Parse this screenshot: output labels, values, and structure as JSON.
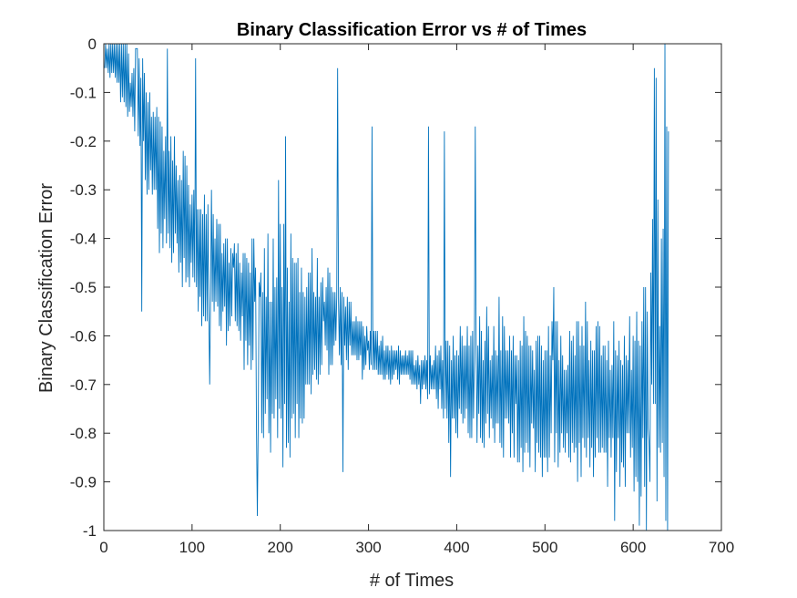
{
  "chart_data": {
    "type": "line",
    "title": "Binary Classification Error vs # of Times",
    "xlabel": "# of Times",
    "ylabel": "Binary Classification Error",
    "xlim": [
      0,
      700
    ],
    "ylim": [
      -1,
      0
    ],
    "xticks": [
      0,
      100,
      200,
      300,
      400,
      500,
      600,
      700
    ],
    "xtick_labels": [
      "0",
      "100",
      "200",
      "300",
      "400",
      "500",
      "600",
      "700"
    ],
    "yticks": [
      0,
      -0.1,
      -0.2,
      -0.3,
      -0.4,
      -0.5,
      -0.6,
      -0.7,
      -0.8,
      -0.9,
      -1
    ],
    "ytick_labels": [
      "0",
      "-0.1",
      "-0.2",
      "-0.3",
      "-0.4",
      "-0.5",
      "-0.6",
      "-0.7",
      "-0.8",
      "-0.9",
      "-1"
    ],
    "grid": false,
    "line_color": "#0072BD",
    "x_range": [
      1,
      640
    ],
    "envelope": {
      "x": [
        0,
        20,
        40,
        60,
        80,
        100,
        120,
        140,
        160,
        170,
        180,
        200,
        220,
        240,
        260,
        280,
        300,
        320,
        340,
        360,
        380,
        400,
        420,
        440,
        460,
        480,
        500,
        520,
        540,
        560,
        580,
        600,
        610,
        620,
        630,
        640
      ],
      "center": [
        -0.02,
        -0.05,
        -0.12,
        -0.25,
        -0.33,
        -0.4,
        -0.45,
        -0.5,
        -0.53,
        -0.58,
        -0.62,
        -0.64,
        -0.6,
        -0.58,
        -0.57,
        -0.6,
        -0.63,
        -0.65,
        -0.66,
        -0.68,
        -0.68,
        -0.7,
        -0.7,
        -0.7,
        -0.71,
        -0.72,
        -0.73,
        -0.73,
        -0.73,
        -0.74,
        -0.74,
        -0.74,
        -0.7,
        -0.63,
        -0.58,
        -0.56
      ],
      "amplitude": [
        0.03,
        0.08,
        0.12,
        0.15,
        0.15,
        0.14,
        0.13,
        0.12,
        0.1,
        0.18,
        0.25,
        0.28,
        0.22,
        0.16,
        0.1,
        0.07,
        0.05,
        0.05,
        0.04,
        0.04,
        0.08,
        0.12,
        0.14,
        0.15,
        0.15,
        0.16,
        0.17,
        0.17,
        0.17,
        0.18,
        0.18,
        0.18,
        0.25,
        0.33,
        0.4,
        0.43
      ]
    },
    "spikes": [
      {
        "x": 37,
        "y": -0.01
      },
      {
        "x": 43,
        "y": -0.55
      },
      {
        "x": 72,
        "y": -0.01
      },
      {
        "x": 104,
        "y": -0.03
      },
      {
        "x": 120,
        "y": -0.7
      },
      {
        "x": 174,
        "y": -0.97
      },
      {
        "x": 206,
        "y": -0.19
      },
      {
        "x": 265,
        "y": -0.05
      },
      {
        "x": 271,
        "y": -0.88
      },
      {
        "x": 304,
        "y": -0.17
      },
      {
        "x": 368,
        "y": -0.17
      },
      {
        "x": 386,
        "y": -0.18
      },
      {
        "x": 421,
        "y": -0.17
      },
      {
        "x": 607,
        "y": -0.99
      },
      {
        "x": 638,
        "y": -0.17
      },
      {
        "x": 639,
        "y": -1.0
      }
    ]
  }
}
